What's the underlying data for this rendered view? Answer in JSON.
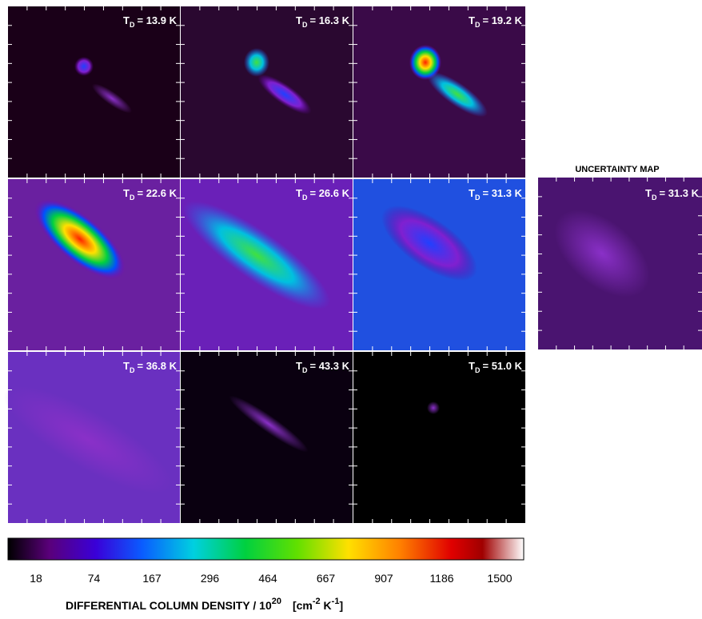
{
  "panels": [
    {
      "label_main": "T",
      "label_sub": "D",
      "label_rest": "= 13.9 K"
    },
    {
      "label_main": "T",
      "label_sub": "D",
      "label_rest": "= 16.3 K"
    },
    {
      "label_main": "T",
      "label_sub": "D",
      "label_rest": "= 19.2 K"
    },
    {
      "label_main": "T",
      "label_sub": "D",
      "label_rest": "= 22.6 K"
    },
    {
      "label_main": "T",
      "label_sub": "D",
      "label_rest": "= 26.6 K"
    },
    {
      "label_main": "T",
      "label_sub": "D",
      "label_rest": "= 31.3 K"
    },
    {
      "label_main": "T",
      "label_sub": "D",
      "label_rest": "=  36.8 K"
    },
    {
      "label_main": "T",
      "label_sub": "D",
      "label_rest": "= 43.3 K"
    },
    {
      "label_main": "T",
      "label_sub": "D",
      "label_rest": "= 51.0 K"
    }
  ],
  "uncertainty": {
    "title": "UNCERTAINTY MAP",
    "label_main": "T",
    "label_sub": "D",
    "label_rest": "= 31.3 K"
  },
  "colorbar": {
    "ticks": [
      "18",
      "74",
      "167",
      "296",
      "464",
      "667",
      "907",
      "1186",
      "1500"
    ],
    "label_main": "DIFFERENTIAL COLUMN DENSITY / 10",
    "label_sup1": "20",
    "label_unit_a": "[cm",
    "label_sup2": "-2",
    "label_unit_b": " K",
    "label_sup3": "-1",
    "label_unit_c": "]"
  }
}
